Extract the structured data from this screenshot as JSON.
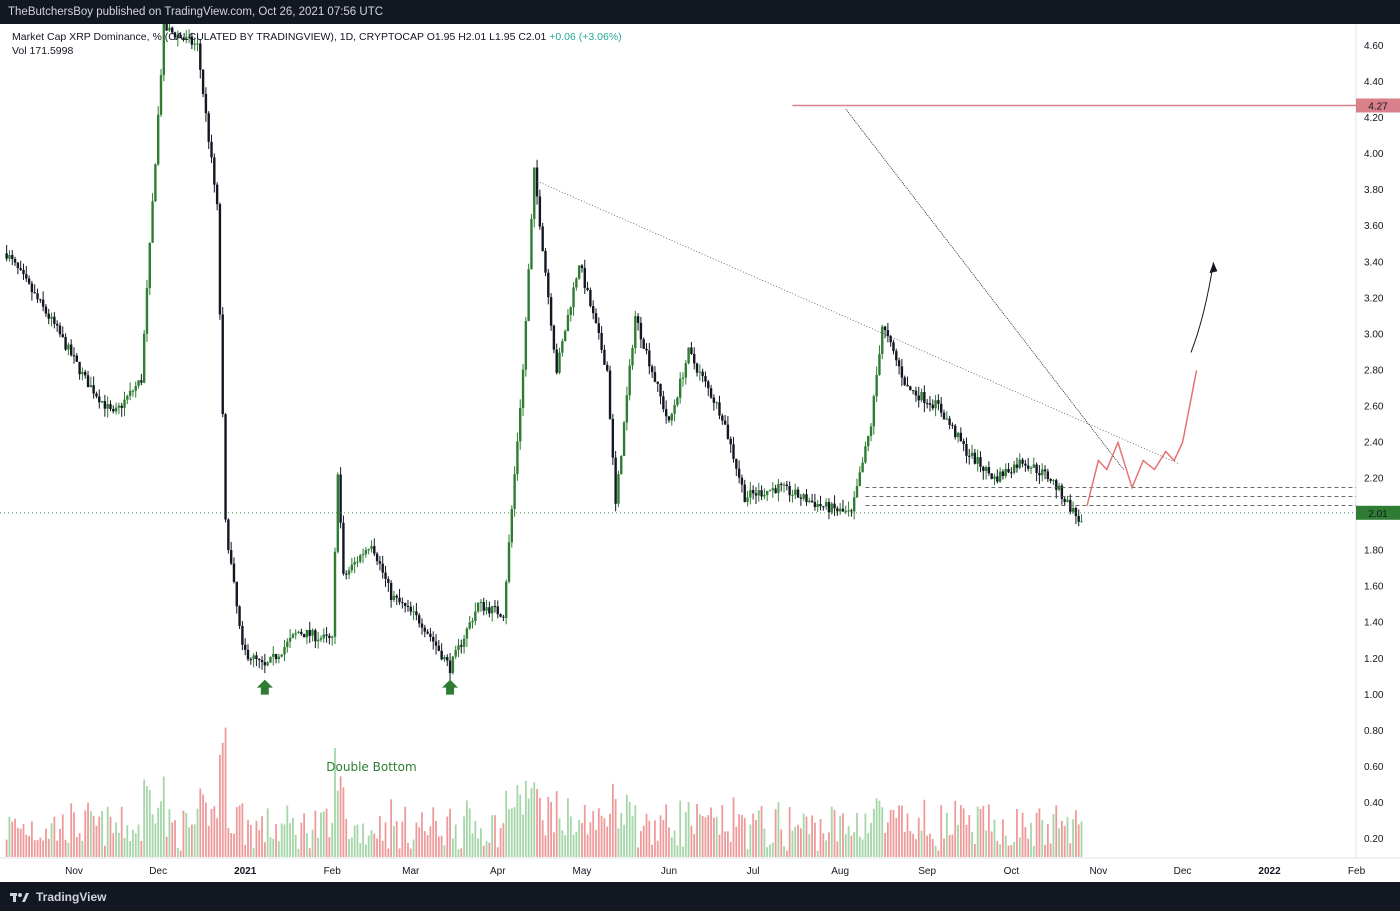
{
  "header": {
    "published": "TheButchersBoy published on TradingView.com, Oct 26, 2021 07:56 UTC"
  },
  "legend": {
    "line1": "Market Cap XRP Dominance, % (CALCULATED BY TRADINGVIEW), 1D, CRYPTOCAP",
    "ohlc": "O1.95  H2.01  L1.95  C2.01",
    "change": "+0.06 (+3.06%)",
    "vol": "Vol  171.5998"
  },
  "footer": {
    "brand": "TradingView"
  },
  "colors": {
    "up": "#2e7d32",
    "down": "#131722",
    "vol_up": "#a5d6a7",
    "vol_down": "#ef9a9a",
    "resistance": "#d9808a",
    "axis_badge": "#2e7d32"
  },
  "chart_data": {
    "type": "candlestick",
    "title": "Market Cap XRP Dominance, %",
    "ylim": [
      0.1,
      4.7
    ],
    "y_ticks": [
      "4.60",
      "4.40",
      "4.20",
      "4.00",
      "3.80",
      "3.60",
      "3.40",
      "3.20",
      "3.00",
      "2.80",
      "2.60",
      "2.40",
      "2.20",
      "1.80",
      "1.60",
      "1.40",
      "1.20",
      "1.00",
      "0.80",
      "0.60",
      "0.40",
      "0.20"
    ],
    "x_labels": [
      "Nov",
      "Dec",
      "2021",
      "Feb",
      "Mar",
      "Apr",
      "May",
      "Jun",
      "Jul",
      "Aug",
      "Sep",
      "Oct",
      "Nov",
      "Dec",
      "2022",
      "Feb"
    ],
    "price_line": 2.01,
    "resistance_level": 4.27,
    "resistance_label": "4.27",
    "current_label": "2.01",
    "annotations": [
      "Double Bottom"
    ],
    "price_path": [
      {
        "x": "2020-10-08",
        "y": 3.45
      },
      {
        "x": "2020-10-25",
        "y": 3.05
      },
      {
        "x": "2020-11-05",
        "y": 2.75
      },
      {
        "x": "2020-11-15",
        "y": 2.55
      },
      {
        "x": "2020-11-25",
        "y": 2.75
      },
      {
        "x": "2020-12-03",
        "y": 4.7
      },
      {
        "x": "2020-12-15",
        "y": 4.6
      },
      {
        "x": "2020-12-22",
        "y": 3.7
      },
      {
        "x": "2020-12-25",
        "y": 1.95
      },
      {
        "x": "2020-12-31",
        "y": 1.25
      },
      {
        "x": "2021-01-08",
        "y": 1.15
      },
      {
        "x": "2021-01-20",
        "y": 1.35
      },
      {
        "x": "2021-02-01",
        "y": 1.3
      },
      {
        "x": "2021-02-03",
        "y": 2.25
      },
      {
        "x": "2021-02-05",
        "y": 1.65
      },
      {
        "x": "2021-02-15",
        "y": 1.85
      },
      {
        "x": "2021-02-22",
        "y": 1.55
      },
      {
        "x": "2021-03-05",
        "y": 1.4
      },
      {
        "x": "2021-03-15",
        "y": 1.15
      },
      {
        "x": "2021-03-25",
        "y": 1.5
      },
      {
        "x": "2021-04-03",
        "y": 1.45
      },
      {
        "x": "2021-04-10",
        "y": 2.8
      },
      {
        "x": "2021-04-14",
        "y": 3.9
      },
      {
        "x": "2021-04-22",
        "y": 2.8
      },
      {
        "x": "2021-04-30",
        "y": 3.4
      },
      {
        "x": "2021-05-10",
        "y": 2.8
      },
      {
        "x": "2021-05-13",
        "y": 2.05
      },
      {
        "x": "2021-05-20",
        "y": 3.1
      },
      {
        "x": "2021-06-01",
        "y": 2.5
      },
      {
        "x": "2021-06-08",
        "y": 2.9
      },
      {
        "x": "2021-06-20",
        "y": 2.55
      },
      {
        "x": "2021-06-28",
        "y": 2.1
      },
      {
        "x": "2021-07-10",
        "y": 2.15
      },
      {
        "x": "2021-07-25",
        "y": 2.05
      },
      {
        "x": "2021-08-05",
        "y": 2.0
      },
      {
        "x": "2021-08-12",
        "y": 2.5
      },
      {
        "x": "2021-08-16",
        "y": 3.05
      },
      {
        "x": "2021-08-25",
        "y": 2.7
      },
      {
        "x": "2021-09-05",
        "y": 2.6
      },
      {
        "x": "2021-09-15",
        "y": 2.35
      },
      {
        "x": "2021-09-25",
        "y": 2.2
      },
      {
        "x": "2021-10-05",
        "y": 2.3
      },
      {
        "x": "2021-10-15",
        "y": 2.2
      },
      {
        "x": "2021-10-26",
        "y": 1.95
      }
    ],
    "projection": [
      {
        "x": "2021-10-28",
        "y": 2.05
      },
      {
        "x": "2021-11-01",
        "y": 2.3
      },
      {
        "x": "2021-11-04",
        "y": 2.25
      },
      {
        "x": "2021-11-08",
        "y": 2.4
      },
      {
        "x": "2021-11-13",
        "y": 2.15
      },
      {
        "x": "2021-11-17",
        "y": 2.3
      },
      {
        "x": "2021-11-21",
        "y": 2.25
      },
      {
        "x": "2021-11-25",
        "y": 2.35
      },
      {
        "x": "2021-11-28",
        "y": 2.3
      },
      {
        "x": "2021-12-01",
        "y": 2.4
      },
      {
        "x": "2021-12-06",
        "y": 2.8
      }
    ]
  }
}
